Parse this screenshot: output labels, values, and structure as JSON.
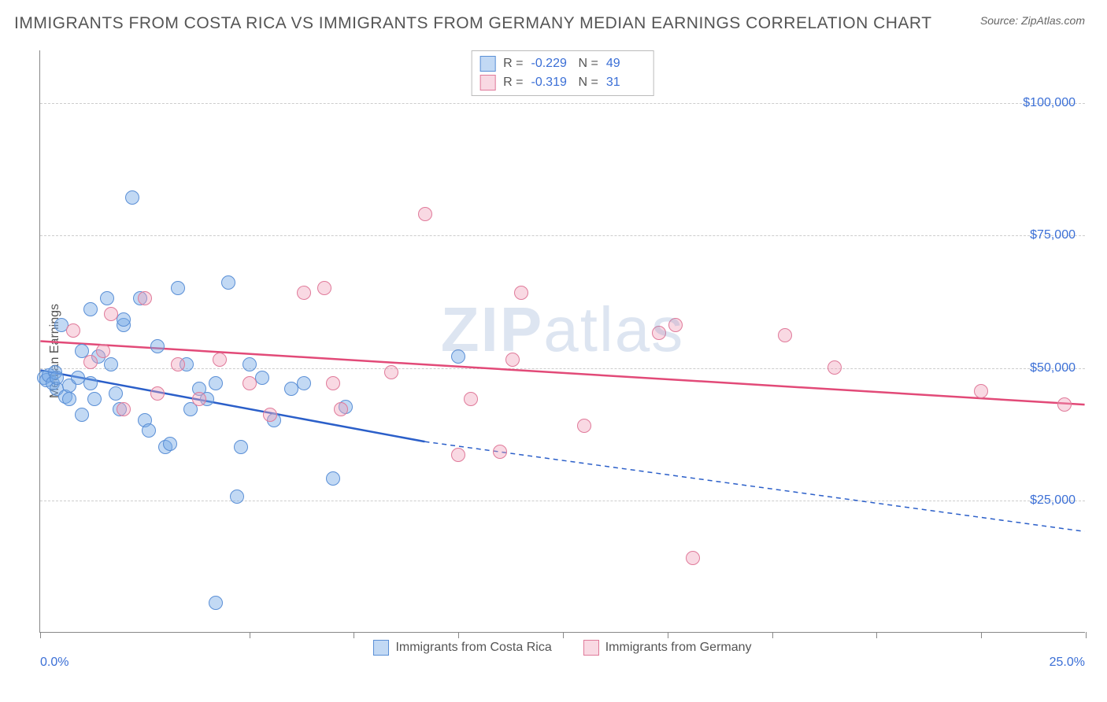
{
  "title": "IMMIGRANTS FROM COSTA RICA VS IMMIGRANTS FROM GERMANY MEDIAN EARNINGS CORRELATION CHART",
  "source": "Source: ZipAtlas.com",
  "ylabel": "Median Earnings",
  "watermark_bold": "ZIP",
  "watermark_rest": "atlas",
  "chart": {
    "type": "scatter",
    "xlim": [
      0,
      25
    ],
    "ylim": [
      0,
      110000
    ],
    "x_tick_positions": [
      0,
      5,
      7.5,
      10,
      12.5,
      15,
      17.5,
      20,
      22.5,
      25
    ],
    "x_tick_labels": {
      "0": "0.0%",
      "25": "25.0%"
    },
    "y_ticks": [
      25000,
      50000,
      75000,
      100000
    ],
    "y_tick_labels": [
      "$25,000",
      "$50,000",
      "$75,000",
      "$100,000"
    ],
    "grid_color": "#cccccc",
    "background_color": "#ffffff",
    "axis_color": "#888888",
    "tick_label_color": "#3b6fd6",
    "point_radius": 9,
    "series": [
      {
        "name": "Immigrants from Costa Rica",
        "fill_color": "rgba(120,170,230,0.45)",
        "stroke_color": "#5a8fd6",
        "line_color": "#2b5fc9",
        "r_value": "-0.229",
        "n_value": "49",
        "trend": {
          "x1": 0,
          "y1": 49500,
          "x2": 9.2,
          "y2": 36000,
          "x_extend": 25,
          "y_extend": 19000
        },
        "points": [
          [
            0.1,
            48000
          ],
          [
            0.15,
            47500
          ],
          [
            0.2,
            48500
          ],
          [
            0.3,
            47000
          ],
          [
            0.35,
            49000
          ],
          [
            0.4,
            46000
          ],
          [
            0.4,
            48000
          ],
          [
            0.6,
            44500
          ],
          [
            0.7,
            46500
          ],
          [
            0.9,
            48000
          ],
          [
            0.5,
            58000
          ],
          [
            1.0,
            53000
          ],
          [
            1.2,
            47000
          ],
          [
            1.4,
            52000
          ],
          [
            1.8,
            45000
          ],
          [
            1.9,
            42000
          ],
          [
            2.0,
            58000
          ],
          [
            2.2,
            82000
          ],
          [
            2.4,
            63000
          ],
          [
            2.5,
            40000
          ],
          [
            2.6,
            38000
          ],
          [
            2.8,
            54000
          ],
          [
            3.0,
            35000
          ],
          [
            3.1,
            35500
          ],
          [
            3.3,
            65000
          ],
          [
            3.5,
            50500
          ],
          [
            3.6,
            42000
          ],
          [
            3.8,
            46000
          ],
          [
            4.0,
            44000
          ],
          [
            4.2,
            47000
          ],
          [
            4.2,
            5500
          ],
          [
            4.5,
            66000
          ],
          [
            4.7,
            25500
          ],
          [
            4.8,
            35000
          ],
          [
            5.0,
            50500
          ],
          [
            5.3,
            48000
          ],
          [
            5.6,
            40000
          ],
          [
            6.0,
            46000
          ],
          [
            6.3,
            47000
          ],
          [
            7.0,
            29000
          ],
          [
            7.3,
            42500
          ],
          [
            10.0,
            52000
          ],
          [
            1.0,
            41000
          ],
          [
            1.3,
            44000
          ],
          [
            1.7,
            50500
          ],
          [
            0.7,
            44000
          ],
          [
            1.2,
            61000
          ],
          [
            1.6,
            63000
          ],
          [
            2.0,
            59000
          ]
        ]
      },
      {
        "name": "Immigrants from Germany",
        "fill_color": "rgba(240,160,185,0.40)",
        "stroke_color": "#e07a9a",
        "line_color": "#e24a78",
        "r_value": "-0.319",
        "n_value": "31",
        "trend": {
          "x1": 0,
          "y1": 55000,
          "x2": 25,
          "y2": 43000,
          "x_extend": 25,
          "y_extend": 43000
        },
        "points": [
          [
            0.8,
            57000
          ],
          [
            1.2,
            51000
          ],
          [
            1.5,
            53000
          ],
          [
            1.7,
            60000
          ],
          [
            2.0,
            42000
          ],
          [
            2.5,
            63000
          ],
          [
            2.8,
            45000
          ],
          [
            3.3,
            50500
          ],
          [
            3.8,
            44000
          ],
          [
            4.3,
            51500
          ],
          [
            5.0,
            47000
          ],
          [
            5.5,
            41000
          ],
          [
            6.3,
            64000
          ],
          [
            6.8,
            65000
          ],
          [
            7.0,
            47000
          ],
          [
            7.2,
            42000
          ],
          [
            8.4,
            49000
          ],
          [
            9.2,
            79000
          ],
          [
            10.0,
            33500
          ],
          [
            10.3,
            44000
          ],
          [
            11.0,
            34000
          ],
          [
            11.3,
            51500
          ],
          [
            11.5,
            64000
          ],
          [
            13.0,
            39000
          ],
          [
            14.8,
            56500
          ],
          [
            15.2,
            58000
          ],
          [
            15.6,
            14000
          ],
          [
            17.8,
            56000
          ],
          [
            19.0,
            50000
          ],
          [
            22.5,
            45500
          ],
          [
            24.5,
            43000
          ]
        ]
      }
    ]
  },
  "legend": {
    "series1": "Immigrants from Costa Rica",
    "series2": "Immigrants from Germany"
  }
}
